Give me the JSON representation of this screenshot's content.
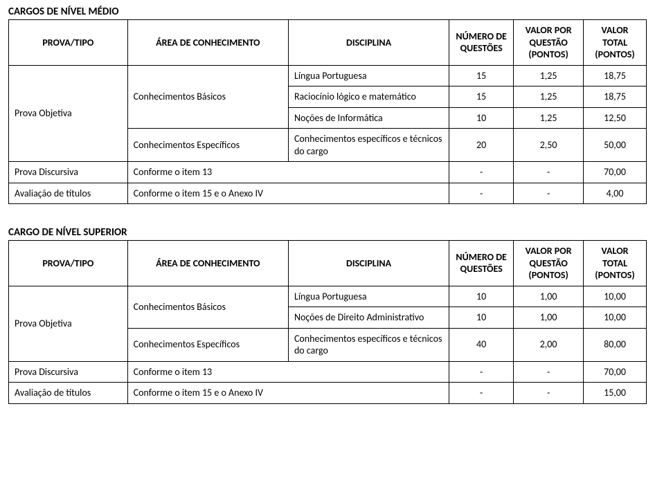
{
  "medio": {
    "title": "CARGOS DE NÍVEL MÉDIO",
    "headers": {
      "prova_tipo": "PROVA/TIPO",
      "area": "ÁREA DE CONHECIMENTO",
      "disciplina": "DISCIPLINA",
      "numero": "NÚMERO DE QUESTÕES",
      "valor_questao": "VALOR POR QUESTÃO (PONTOS)",
      "valor_total": "VALOR TOTAL (PONTOS)"
    },
    "prova_objetiva": "Prova Objetiva",
    "basicos": "Conhecimentos Básicos",
    "especificos": "Conhecimentos Específicos",
    "rows": [
      {
        "d": "Língua Portuguesa",
        "n": "15",
        "vq": "1,25",
        "vt": "18,75"
      },
      {
        "d": "Raciocínio lógico e matemático",
        "n": "15",
        "vq": "1,25",
        "vt": "18,75"
      },
      {
        "d": "Noções de Informática",
        "n": "10",
        "vq": "1,25",
        "vt": "12,50"
      },
      {
        "d": "Conhecimentos específicos e técnicos do cargo",
        "n": "20",
        "vq": "2,50",
        "vt": "50,00"
      }
    ],
    "discursiva": {
      "label": "Prova Discursiva",
      "conf": "Conforme o item 13",
      "n": "-",
      "vq": "-",
      "vt": "70,00"
    },
    "titulos": {
      "label": "Avaliação de títulos",
      "conf": "Conforme o item 15 e o Anexo IV",
      "n": "-",
      "vq": "-",
      "vt": "4,00"
    }
  },
  "superior": {
    "title": "CARGO DE NÍVEL SUPERIOR",
    "headers": {
      "prova_tipo": "PROVA/TIPO",
      "area": "ÁREA DE CONHECIMENTO",
      "disciplina": "DISCIPLINA",
      "numero": "NÚMERO DE QUESTÕES",
      "valor_questao": "VALOR POR QUESTÃO (PONTOS)",
      "valor_total": "VALOR TOTAL (PONTOS)"
    },
    "prova_objetiva": "Prova Objetiva",
    "basicos": "Conhecimentos Básicos",
    "especificos": "Conhecimentos Específicos",
    "rows": [
      {
        "d": "Língua Portuguesa",
        "n": "10",
        "vq": "1,00",
        "vt": "10,00"
      },
      {
        "d": "Noções de Direito Administrativo",
        "n": "10",
        "vq": "1,00",
        "vt": "10,00"
      },
      {
        "d": "Conhecimentos específicos e técnicos do cargo",
        "n": "40",
        "vq": "2,00",
        "vt": "80,00"
      }
    ],
    "discursiva": {
      "label": "Prova Discursiva",
      "conf": "Conforme o item 13",
      "n": "-",
      "vq": "-",
      "vt": "70,00"
    },
    "titulos": {
      "label": "Avaliação de títulos",
      "conf": "Conforme o item 15 e o Anexo IV",
      "n": "-",
      "vq": "-",
      "vt": "15,00"
    }
  }
}
